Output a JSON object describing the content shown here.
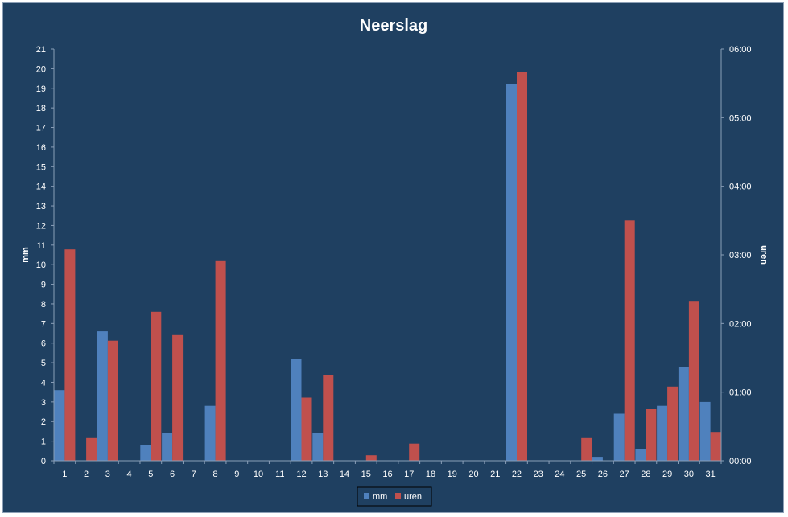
{
  "chart_data": {
    "type": "bar",
    "title": "Neerslag",
    "xlabel": "",
    "ylabel": "mm",
    "y2label": "uren",
    "categories": [
      "1",
      "2",
      "3",
      "4",
      "5",
      "6",
      "7",
      "8",
      "9",
      "10",
      "11",
      "12",
      "13",
      "14",
      "15",
      "16",
      "17",
      "18",
      "19",
      "20",
      "21",
      "22",
      "23",
      "24",
      "25",
      "26",
      "27",
      "28",
      "29",
      "30",
      "31"
    ],
    "ylim": [
      0,
      21
    ],
    "yticks": [
      "0",
      "1",
      "2",
      "3",
      "4",
      "5",
      "6",
      "7",
      "8",
      "9",
      "10",
      "11",
      "12",
      "13",
      "14",
      "15",
      "16",
      "17",
      "18",
      "19",
      "20",
      "21"
    ],
    "y2lim_hours": [
      0,
      6
    ],
    "y2ticks": [
      "00:00",
      "01:00",
      "02:00",
      "03:00",
      "04:00",
      "05:00",
      "06:00"
    ],
    "series": [
      {
        "name": "mm",
        "axis": "left",
        "color": "#4f81bd",
        "values": [
          3.6,
          0,
          6.6,
          0,
          0.8,
          1.4,
          0,
          2.8,
          0,
          0,
          0,
          5.2,
          1.4,
          0,
          0,
          0,
          0,
          0,
          0,
          0,
          0,
          19.2,
          0,
          0,
          0,
          0.2,
          2.4,
          0.6,
          2.8,
          4.8,
          3.0
        ]
      },
      {
        "name": "uren",
        "axis": "right",
        "color": "#c0504d",
        "values": [
          3.08,
          0.33,
          1.75,
          0,
          2.17,
          1.83,
          0,
          2.92,
          0,
          0,
          0,
          0.92,
          1.25,
          0,
          0.08,
          0,
          0.25,
          0,
          0,
          0,
          0,
          5.67,
          0,
          0,
          0.33,
          0,
          3.5,
          0.75,
          1.08,
          2.33,
          0.42
        ]
      }
    ],
    "legend": "bottom",
    "grid": false
  }
}
